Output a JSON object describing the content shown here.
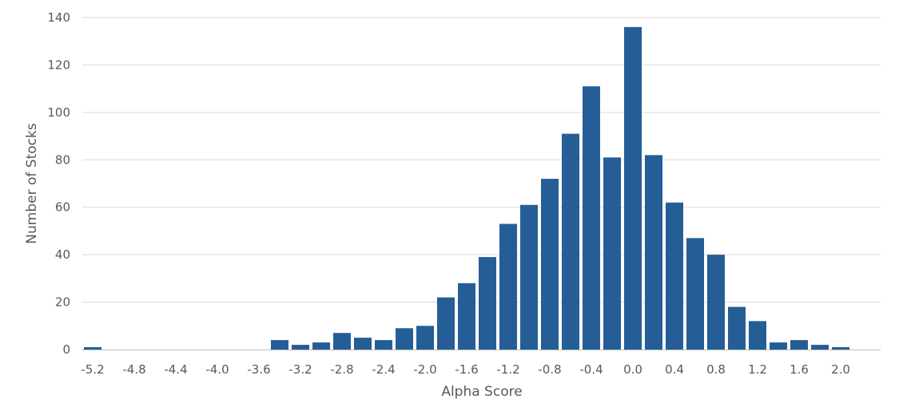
{
  "chart_data": {
    "type": "bar",
    "xlabel": "Alpha Score",
    "ylabel": "Number of Stocks",
    "ylim": [
      0,
      140
    ],
    "yticks": [
      0,
      20,
      40,
      60,
      80,
      100,
      120,
      140
    ],
    "grid": true,
    "bar_color": "#255e96",
    "categories": [
      "-5.2",
      "-5.0",
      "-4.8",
      "-4.6",
      "-4.4",
      "-4.2",
      "-4.0",
      "-3.8",
      "-3.6",
      "-3.4",
      "-3.2",
      "-3.0",
      "-2.8",
      "-2.6",
      "-2.4",
      "-2.2",
      "-2.0",
      "-1.8",
      "-1.6",
      "-1.4",
      "-1.2",
      "-1.0",
      "-0.8",
      "-0.6",
      "-0.4",
      "-0.2",
      "0.0",
      "0.2",
      "0.4",
      "0.6",
      "0.8",
      "1.0",
      "1.2",
      "1.4",
      "1.6",
      "1.8",
      "2.0",
      "2.2"
    ],
    "x_tick_labels": [
      "-5.2",
      "-4.8",
      "-4.4",
      "-4.0",
      "-3.6",
      "-3.2",
      "-2.8",
      "-2.4",
      "-2.0",
      "-1.6",
      "-1.2",
      "-0.8",
      "-0.4",
      "0.0",
      "0.4",
      "0.8",
      "1.2",
      "1.6",
      "2.0"
    ],
    "values": [
      1,
      0,
      0,
      0,
      0,
      0,
      0,
      0,
      0,
      4,
      2,
      3,
      7,
      5,
      4,
      9,
      10,
      22,
      28,
      39,
      53,
      61,
      72,
      91,
      111,
      81,
      136,
      82,
      62,
      47,
      40,
      18,
      12,
      3,
      4,
      2,
      1,
      0
    ]
  }
}
